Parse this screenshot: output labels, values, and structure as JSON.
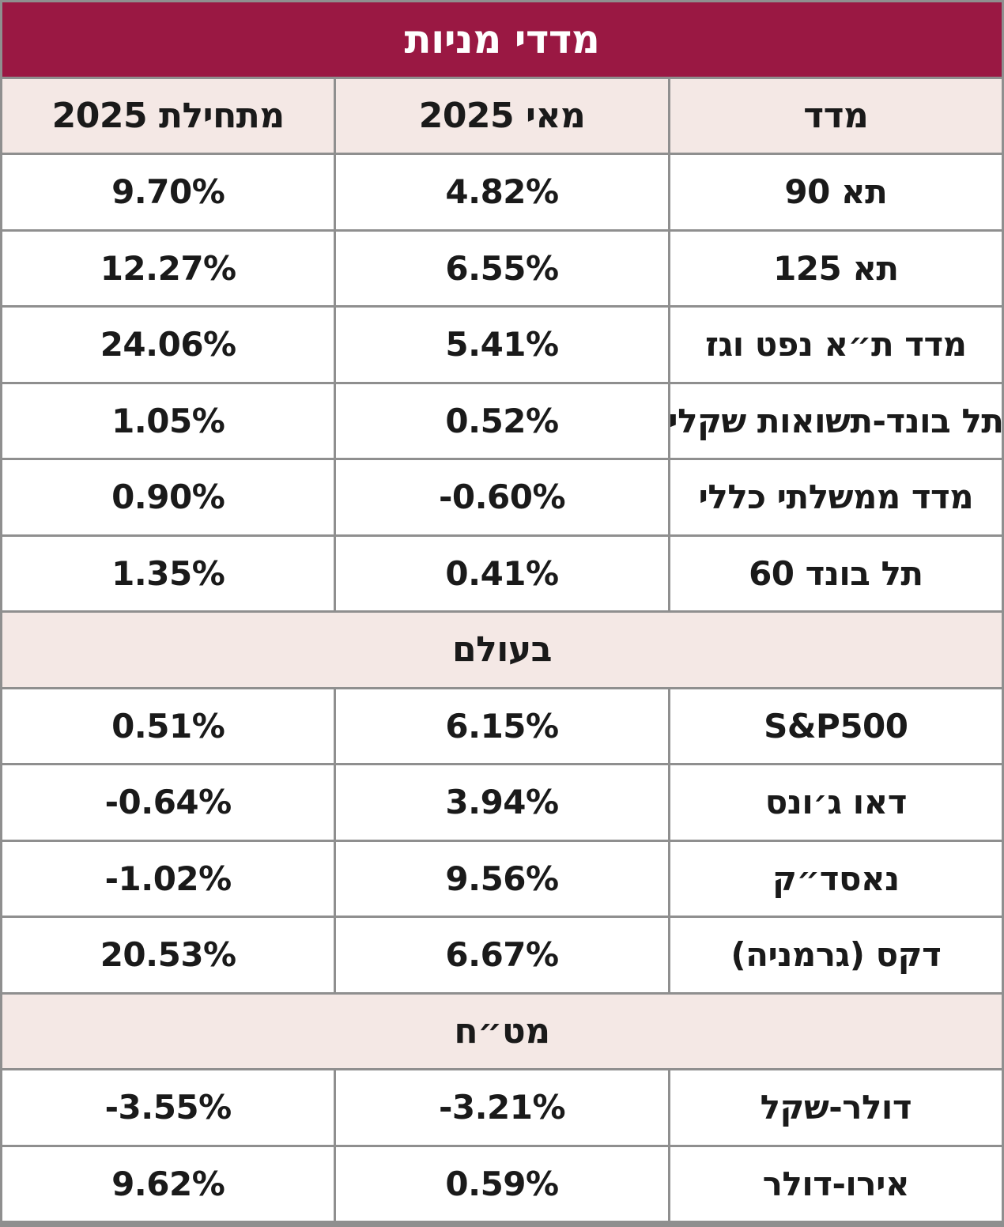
{
  "colors": {
    "title_bg": "#9A1843",
    "title_text": "#FFFFFF",
    "header_bg": "#F4E8E5",
    "border": "#8F8F8F",
    "cell_bg": "#FFFFFF",
    "text": "#1A1A1A"
  },
  "chart_data": {
    "type": "table",
    "title": "מדדי מניות",
    "columns": [
      "מדד",
      "מאי 2025",
      "מתחילת 2025"
    ],
    "sections": [
      {
        "header": null,
        "rows": [
          {
            "index": "תא 90",
            "may_2025": "4.82%",
            "since_start_2025": "9.70%"
          },
          {
            "index": "תא 125",
            "may_2025": "6.55%",
            "since_start_2025": "12.27%"
          },
          {
            "index": "מדד ת״א נפט וגז",
            "may_2025": "5.41%",
            "since_start_2025": "24.06%"
          },
          {
            "index": "תל בונד-תשואות שקלי",
            "may_2025": "0.52%",
            "since_start_2025": "1.05%"
          },
          {
            "index": "מדד ממשלתי כללי",
            "may_2025": "-0.60%",
            "since_start_2025": "0.90%"
          },
          {
            "index": "תל בונד 60",
            "may_2025": "0.41%",
            "since_start_2025": "1.35%"
          }
        ]
      },
      {
        "header": "בעולם",
        "rows": [
          {
            "index": "S&P500",
            "may_2025": "6.15%",
            "since_start_2025": "0.51%"
          },
          {
            "index": "דאו ג׳ונס",
            "may_2025": "3.94%",
            "since_start_2025": "-0.64%"
          },
          {
            "index": "נאסד״ק",
            "may_2025": "9.56%",
            "since_start_2025": "-1.02%"
          },
          {
            "index": "דקס (גרמניה)",
            "may_2025": "6.67%",
            "since_start_2025": "20.53%"
          }
        ]
      },
      {
        "header": "מט״ח",
        "rows": [
          {
            "index": "דולר-שקל",
            "may_2025": "-3.21%",
            "since_start_2025": "-3.55%"
          },
          {
            "index": "אירו-דולר",
            "may_2025": "0.59%",
            "since_start_2025": "9.62%"
          }
        ]
      }
    ]
  }
}
